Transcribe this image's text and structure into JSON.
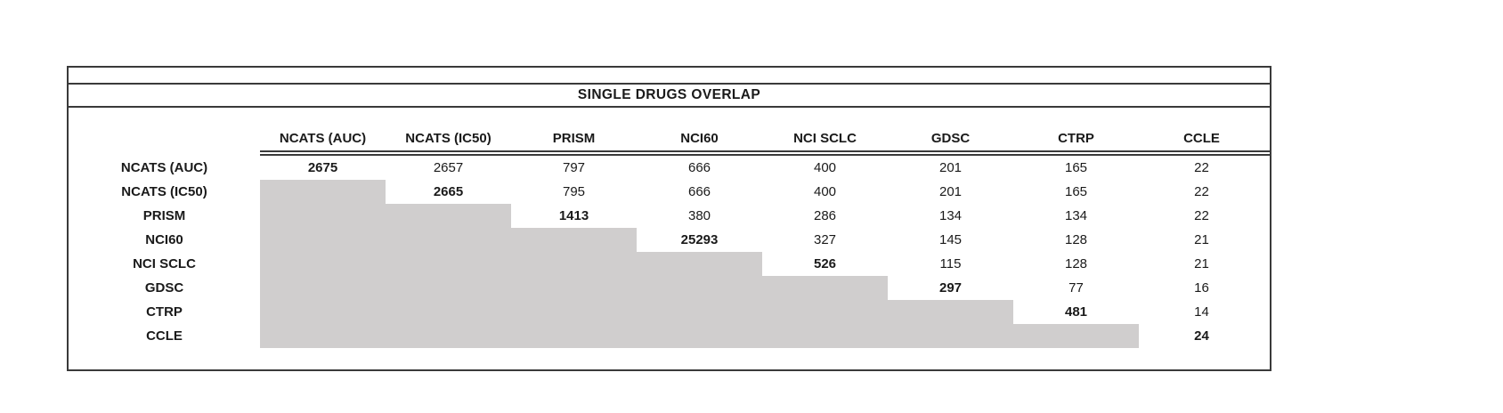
{
  "title": "SINGLE DRUGS OVERLAP",
  "colors": {
    "shaded_cell": "#d0cece",
    "line": "#3a3a3a",
    "text": "#1a1a1a"
  },
  "chart_data": {
    "type": "table",
    "title": "SINGLE DRUGS OVERLAP",
    "columns": [
      "NCATS (AUC)",
      "NCATS (IC50)",
      "PRISM",
      "NCI60",
      "NCI SCLC",
      "GDSC",
      "CTRP",
      "CCLE"
    ],
    "rows": [
      {
        "label": "NCATS (AUC)",
        "values": [
          "2675",
          "2657",
          "797",
          "666",
          "400",
          "201",
          "165",
          "22"
        ]
      },
      {
        "label": "NCATS (IC50)",
        "values": [
          null,
          "2665",
          "795",
          "666",
          "400",
          "201",
          "165",
          "22"
        ]
      },
      {
        "label": "PRISM",
        "values": [
          null,
          null,
          "1413",
          "380",
          "286",
          "134",
          "134",
          "22"
        ]
      },
      {
        "label": "NCI60",
        "values": [
          null,
          null,
          null,
          "25293",
          "327",
          "145",
          "128",
          "21"
        ]
      },
      {
        "label": "NCI SCLC",
        "values": [
          null,
          null,
          null,
          null,
          "526",
          "115",
          "128",
          "21"
        ]
      },
      {
        "label": "GDSC",
        "values": [
          null,
          null,
          null,
          null,
          null,
          "297",
          "77",
          "16"
        ]
      },
      {
        "label": "CTRP",
        "values": [
          null,
          null,
          null,
          null,
          null,
          null,
          "481",
          "14"
        ]
      },
      {
        "label": "CCLE",
        "values": [
          null,
          null,
          null,
          null,
          null,
          null,
          null,
          "24"
        ]
      }
    ],
    "notes": {
      "diagonal_bold": "diagonal self-overlap counts are bold",
      "lower_triangle": "lower-triangle cells are shaded gray (no values)"
    }
  }
}
